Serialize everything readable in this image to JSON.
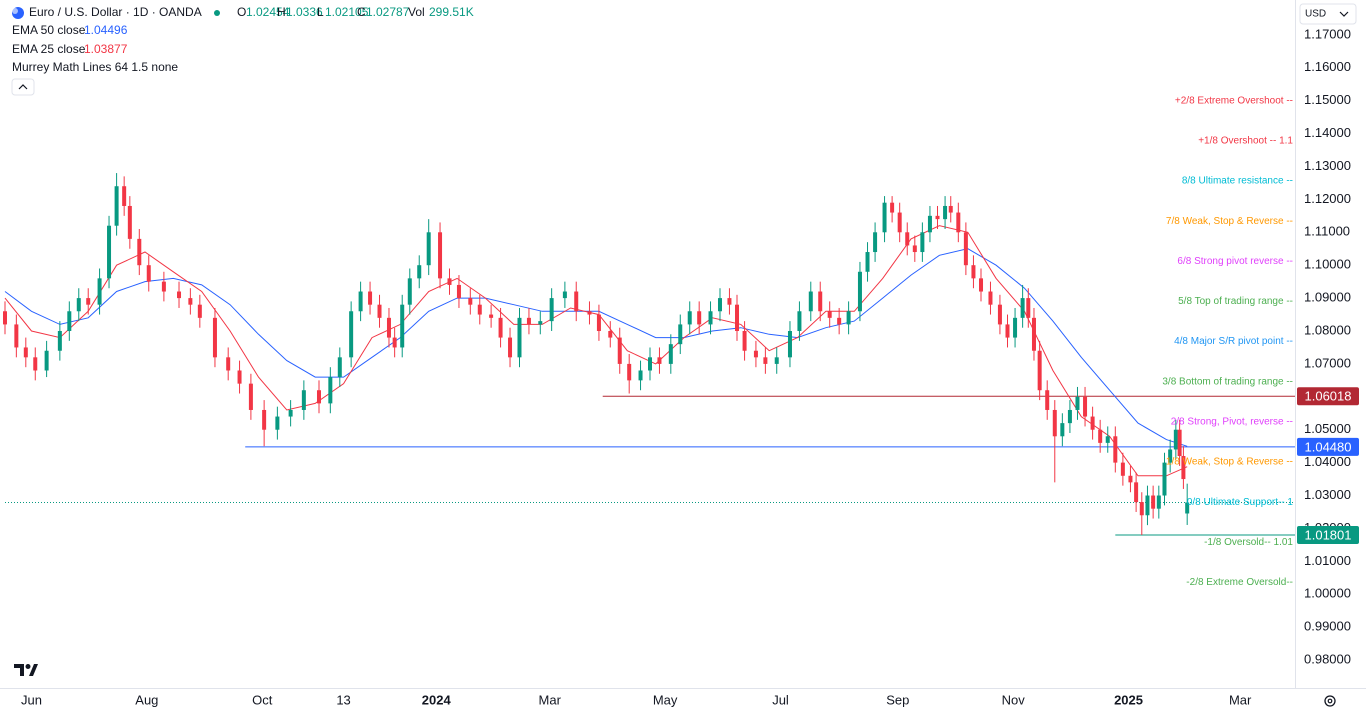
{
  "chart_data": {
    "type": "candlestick",
    "title": "Euro / U.S. Dollar · 1D · OANDA",
    "ohlc_keys": [
      "O",
      "H",
      "L",
      "C"
    ],
    "volume_key": "Vol",
    "volume": "299.51K",
    "currency": "USD",
    "indicator": "Murrey Math Lines 64 1.5 none",
    "up_color": "#089981",
    "down_color": "#f23645",
    "x": [
      -14,
      -8,
      -3,
      2,
      8,
      15,
      20,
      25,
      30,
      36,
      41,
      45,
      49,
      52,
      57,
      62,
      70,
      78,
      84,
      89,
      97,
      104,
      110,
      116,
      123,
      130,
      137,
      144,
      152,
      158,
      163,
      169,
      174,
      179,
      184,
      189,
      192,
      196,
      200,
      205,
      210,
      216,
      221,
      226,
      232,
      237,
      243,
      248,
      253,
      258,
      263,
      269,
      275,
      282,
      288,
      295,
      300,
      306,
      311,
      316,
      322,
      327,
      332,
      338,
      343,
      348,
      353,
      359,
      364,
      369,
      373,
      377,
      383,
      388,
      394,
      401,
      406,
      412,
      417,
      422,
      427,
      432,
      438,
      442,
      446,
      451,
      455,
      459,
      463,
      467,
      471,
      475,
      479,
      483,
      486,
      490,
      494,
      498,
      502,
      507,
      512,
      516,
      520,
      524,
      527,
      530,
      533,
      537,
      541,
      545,
      549,
      553,
      557,
      561,
      565,
      569,
      573,
      577,
      581,
      584,
      587,
      590,
      593,
      596,
      599,
      602,
      605,
      607,
      609,
      611
    ],
    "open": [
      1.086,
      1.082,
      1.075,
      1.072,
      1.068,
      1.074,
      1.08,
      1.086,
      1.09,
      1.088,
      1.096,
      1.112,
      1.124,
      1.118,
      1.108,
      1.1,
      1.095,
      1.092,
      1.09,
      1.088,
      1.084,
      1.072,
      1.068,
      1.064,
      1.056,
      1.05,
      1.054,
      1.056,
      1.062,
      1.058,
      1.066,
      1.072,
      1.086,
      1.092,
      1.088,
      1.084,
      1.078,
      1.075,
      1.088,
      1.096,
      1.1,
      1.11,
      1.096,
      1.094,
      1.09,
      1.088,
      1.085,
      1.084,
      1.078,
      1.072,
      1.084,
      1.082,
      1.083,
      1.09,
      1.092,
      1.086,
      1.085,
      1.08,
      1.078,
      1.07,
      1.065,
      1.068,
      1.072,
      1.07,
      1.076,
      1.082,
      1.086,
      1.082,
      1.086,
      1.09,
      1.088,
      1.08,
      1.074,
      1.072,
      1.07,
      1.072,
      1.08,
      1.086,
      1.092,
      1.086,
      1.084,
      1.082,
      1.086,
      1.098,
      1.104,
      1.11,
      1.119,
      1.116,
      1.11,
      1.106,
      1.104,
      1.11,
      1.115,
      1.114,
      1.118,
      1.116,
      1.11,
      1.1,
      1.096,
      1.092,
      1.088,
      1.082,
      1.078,
      1.084,
      1.09,
      1.084,
      1.074,
      1.062,
      1.056,
      1.048,
      1.052,
      1.056,
      1.06,
      1.054,
      1.05,
      1.046,
      1.048,
      1.04,
      1.036,
      1.034,
      1.028,
      1.024,
      1.03,
      1.026,
      1.03,
      1.04,
      1.044,
      1.05,
      1.042,
      1.02454
    ],
    "high": [
      1.089,
      1.085,
      1.078,
      1.075,
      1.077,
      1.083,
      1.089,
      1.093,
      1.093,
      1.099,
      1.115,
      1.128,
      1.127,
      1.121,
      1.111,
      1.103,
      1.098,
      1.095,
      1.093,
      1.091,
      1.087,
      1.075,
      1.071,
      1.067,
      1.059,
      1.057,
      1.059,
      1.065,
      1.065,
      1.069,
      1.075,
      1.089,
      1.095,
      1.095,
      1.091,
      1.087,
      1.081,
      1.091,
      1.099,
      1.103,
      1.114,
      1.113,
      1.099,
      1.097,
      1.093,
      1.091,
      1.088,
      1.087,
      1.081,
      1.087,
      1.087,
      1.086,
      1.093,
      1.095,
      1.095,
      1.089,
      1.088,
      1.083,
      1.081,
      1.073,
      1.071,
      1.075,
      1.075,
      1.079,
      1.085,
      1.089,
      1.089,
      1.089,
      1.093,
      1.093,
      1.091,
      1.083,
      1.077,
      1.075,
      1.075,
      1.083,
      1.089,
      1.095,
      1.095,
      1.089,
      1.087,
      1.089,
      1.101,
      1.107,
      1.113,
      1.121,
      1.121,
      1.119,
      1.113,
      1.109,
      1.113,
      1.118,
      1.118,
      1.121,
      1.121,
      1.119,
      1.113,
      1.103,
      1.099,
      1.095,
      1.091,
      1.085,
      1.087,
      1.094,
      1.093,
      1.087,
      1.077,
      1.065,
      1.059,
      1.055,
      1.059,
      1.063,
      1.063,
      1.057,
      1.053,
      1.051,
      1.051,
      1.043,
      1.039,
      1.037,
      1.031,
      1.033,
      1.033,
      1.033,
      1.043,
      1.047,
      1.053,
      1.053,
      1.045,
      1.0336
    ],
    "low": [
      1.079,
      1.072,
      1.069,
      1.065,
      1.066,
      1.071,
      1.077,
      1.083,
      1.085,
      1.085,
      1.093,
      1.109,
      1.115,
      1.105,
      1.097,
      1.092,
      1.089,
      1.087,
      1.085,
      1.081,
      1.069,
      1.065,
      1.061,
      1.053,
      1.045,
      1.047,
      1.051,
      1.053,
      1.055,
      1.055,
      1.063,
      1.069,
      1.083,
      1.085,
      1.081,
      1.075,
      1.072,
      1.072,
      1.085,
      1.093,
      1.097,
      1.093,
      1.091,
      1.087,
      1.085,
      1.082,
      1.081,
      1.075,
      1.069,
      1.069,
      1.079,
      1.079,
      1.08,
      1.087,
      1.083,
      1.082,
      1.077,
      1.075,
      1.067,
      1.061,
      1.062,
      1.065,
      1.067,
      1.067,
      1.073,
      1.079,
      1.079,
      1.079,
      1.083,
      1.085,
      1.077,
      1.071,
      1.069,
      1.067,
      1.067,
      1.069,
      1.077,
      1.083,
      1.083,
      1.081,
      1.079,
      1.079,
      1.083,
      1.095,
      1.101,
      1.107,
      1.113,
      1.107,
      1.103,
      1.101,
      1.101,
      1.107,
      1.111,
      1.111,
      1.113,
      1.107,
      1.097,
      1.093,
      1.089,
      1.085,
      1.079,
      1.075,
      1.075,
      1.081,
      1.081,
      1.071,
      1.059,
      1.053,
      1.034,
      1.045,
      1.049,
      1.053,
      1.051,
      1.047,
      1.043,
      1.043,
      1.037,
      1.033,
      1.031,
      1.025,
      1.018,
      1.021,
      1.023,
      1.023,
      1.027,
      1.037,
      1.041,
      1.039,
      1.032,
      1.02105
    ],
    "close": [
      1.082,
      1.075,
      1.072,
      1.068,
      1.074,
      1.08,
      1.086,
      1.09,
      1.088,
      1.096,
      1.112,
      1.124,
      1.118,
      1.108,
      1.1,
      1.095,
      1.092,
      1.09,
      1.088,
      1.084,
      1.072,
      1.068,
      1.064,
      1.056,
      1.05,
      1.054,
      1.056,
      1.062,
      1.058,
      1.066,
      1.072,
      1.086,
      1.092,
      1.088,
      1.084,
      1.078,
      1.075,
      1.088,
      1.096,
      1.1,
      1.11,
      1.096,
      1.094,
      1.09,
      1.088,
      1.085,
      1.084,
      1.078,
      1.072,
      1.084,
      1.082,
      1.083,
      1.09,
      1.092,
      1.086,
      1.085,
      1.08,
      1.078,
      1.07,
      1.065,
      1.068,
      1.072,
      1.07,
      1.076,
      1.082,
      1.086,
      1.082,
      1.086,
      1.09,
      1.088,
      1.08,
      1.074,
      1.072,
      1.07,
      1.072,
      1.08,
      1.086,
      1.092,
      1.086,
      1.084,
      1.082,
      1.086,
      1.098,
      1.104,
      1.11,
      1.119,
      1.116,
      1.11,
      1.106,
      1.104,
      1.11,
      1.115,
      1.114,
      1.118,
      1.116,
      1.11,
      1.1,
      1.096,
      1.092,
      1.088,
      1.082,
      1.078,
      1.084,
      1.09,
      1.084,
      1.074,
      1.062,
      1.056,
      1.048,
      1.052,
      1.056,
      1.06,
      1.054,
      1.05,
      1.046,
      1.048,
      1.04,
      1.036,
      1.034,
      1.028,
      1.024,
      1.03,
      1.026,
      1.03,
      1.04,
      1.044,
      1.05,
      1.042,
      1.035,
      1.02787
    ],
    "series": [
      {
        "name": "EMA 50 close",
        "color": "#2962ff",
        "x": [
          -14,
          0,
          15,
          30,
          45,
          60,
          75,
          90,
          105,
          120,
          135,
          150,
          165,
          180,
          195,
          210,
          225,
          240,
          255,
          270,
          285,
          300,
          315,
          330,
          345,
          360,
          375,
          390,
          405,
          420,
          435,
          450,
          465,
          480,
          495,
          510,
          525,
          540,
          555,
          570,
          585,
          600,
          611
        ],
        "values": [
          1.092,
          1.086,
          1.082,
          1.084,
          1.092,
          1.095,
          1.096,
          1.094,
          1.088,
          1.079,
          1.071,
          1.066,
          1.066,
          1.072,
          1.078,
          1.086,
          1.09,
          1.09,
          1.088,
          1.086,
          1.086,
          1.086,
          1.082,
          1.078,
          1.078,
          1.08,
          1.081,
          1.079,
          1.078,
          1.081,
          1.083,
          1.09,
          1.097,
          1.103,
          1.105,
          1.1,
          1.093,
          1.083,
          1.072,
          1.062,
          1.052,
          1.047,
          1.04496
        ]
      },
      {
        "name": "EMA 25 close",
        "color": "#f23645",
        "x": [
          -14,
          0,
          15,
          30,
          45,
          60,
          75,
          90,
          105,
          120,
          135,
          150,
          165,
          180,
          195,
          210,
          225,
          240,
          255,
          270,
          285,
          300,
          315,
          330,
          345,
          360,
          375,
          390,
          405,
          420,
          435,
          450,
          465,
          480,
          495,
          510,
          525,
          540,
          555,
          570,
          585,
          600,
          611
        ],
        "values": [
          1.09,
          1.08,
          1.078,
          1.086,
          1.1,
          1.104,
          1.098,
          1.092,
          1.08,
          1.066,
          1.056,
          1.058,
          1.064,
          1.078,
          1.082,
          1.092,
          1.096,
          1.09,
          1.082,
          1.082,
          1.087,
          1.085,
          1.074,
          1.07,
          1.078,
          1.084,
          1.082,
          1.074,
          1.078,
          1.086,
          1.086,
          1.096,
          1.108,
          1.112,
          1.11,
          1.096,
          1.086,
          1.068,
          1.054,
          1.048,
          1.036,
          1.036,
          1.03877
        ]
      }
    ],
    "murray": [
      {
        "label": "+2/8 Extreme Overshoot --",
        "value": 1.14941,
        "color": "#f23645"
      },
      {
        "label": "+1/8 Overshoot --  1.1",
        "value": 1.13721,
        "color": "#f23645"
      },
      {
        "label": "8/8 Ultimate resistance --",
        "value": 1.125,
        "color": "#00bcd4"
      },
      {
        "label": "7/8 Weak, Stop & Reverse --",
        "value": 1.11279,
        "color": "#ff9800"
      },
      {
        "label": "6/8 Strong pivot reverse --",
        "value": 1.10059,
        "color": "#e040fb"
      },
      {
        "label": "5/8 Top of trading range --",
        "value": 1.08838,
        "color": "#4caf50"
      },
      {
        "label": "4/8 Major S/R pivot point --",
        "value": 1.07617,
        "color": "#2196f3"
      },
      {
        "label": "3/8 Bottom of trading range --",
        "value": 1.06396,
        "color": "#4caf50"
      },
      {
        "label": "2/8 Strong, Pivot, reverse --",
        "value": 1.05176,
        "color": "#e040fb"
      },
      {
        "label": "1/8 Weak, Stop & Reverse --",
        "value": 1.03955,
        "color": "#ff9800"
      },
      {
        "label": "0/8 Ultimate Support--  1",
        "value": 1.02734,
        "color": "#00bcd4"
      },
      {
        "label": "-1/8 Oversold--  1.01",
        "value": 1.01514,
        "color": "#4caf50"
      },
      {
        "label": "-2/8 Extreme Oversold--",
        "value": 1.00293,
        "color": "#4caf50"
      }
    ],
    "price_lines": [
      {
        "value": 1.06018,
        "start": 302,
        "color": "#b22833"
      },
      {
        "value": 1.0448,
        "label": "1.04480",
        "start": 113,
        "color": "#2962ff"
      },
      {
        "value": 1.01801,
        "start": 573,
        "color": "#089981"
      }
    ],
    "xlim": [
      -14,
      668
    ],
    "ylim": [
      0.9715,
      1.1806
    ],
    "xticks": [
      {
        "value": 0,
        "label": "Jun"
      },
      {
        "value": 61,
        "label": "Aug"
      },
      {
        "value": 122,
        "label": "Oct"
      },
      {
        "value": 165,
        "label": "13"
      },
      {
        "value": 214,
        "label": "2024",
        "bold": true
      },
      {
        "value": 274,
        "label": "Mar"
      },
      {
        "value": 335,
        "label": "May"
      },
      {
        "value": 396,
        "label": "Jul"
      },
      {
        "value": 458,
        "label": "Sep"
      },
      {
        "value": 519,
        "label": "Nov"
      },
      {
        "value": 580,
        "label": "2025",
        "bold": true
      },
      {
        "value": 639,
        "label": "Mar"
      }
    ],
    "yticks": [
      {
        "value": 1.17,
        "label": "1.17000"
      },
      {
        "value": 1.16,
        "label": "1.16000"
      },
      {
        "value": 1.15,
        "label": "1.15000"
      },
      {
        "value": 1.14,
        "label": "1.14000"
      },
      {
        "value": 1.13,
        "label": "1.13000"
      },
      {
        "value": 1.12,
        "label": "1.12000"
      },
      {
        "value": 1.11,
        "label": "1.11000"
      },
      {
        "value": 1.1,
        "label": "1.10000"
      },
      {
        "value": 1.09,
        "label": "1.09000"
      },
      {
        "value": 1.08,
        "label": "1.08000"
      },
      {
        "value": 1.07,
        "label": "1.07000"
      },
      {
        "value": 1.06,
        "label": "1.06000"
      },
      {
        "value": 1.05,
        "label": "1.05000"
      },
      {
        "value": 1.04,
        "label": "1.04000"
      },
      {
        "value": 1.03,
        "label": "1.03000"
      },
      {
        "value": 1.02,
        "label": "1.02000"
      },
      {
        "value": 1.01,
        "label": "1.01000"
      },
      {
        "value": 1.0,
        "label": "1.00000"
      },
      {
        "value": 0.99,
        "label": "0.99000"
      },
      {
        "value": 0.98,
        "label": "0.98000"
      }
    ],
    "grid": false
  }
}
